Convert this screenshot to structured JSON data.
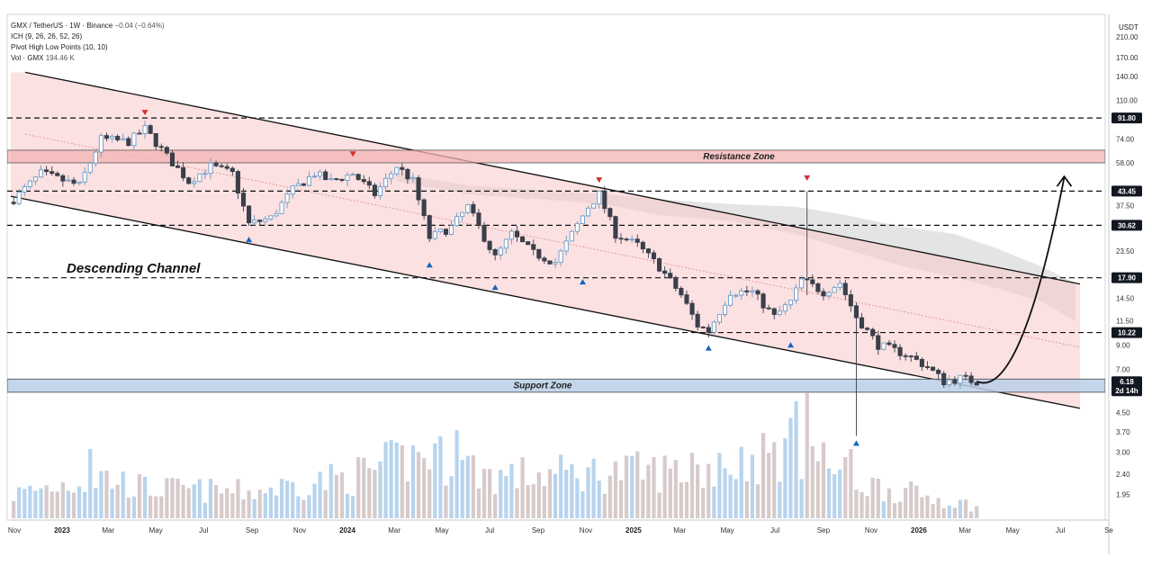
{
  "header": {
    "symbol_line": "GMX / TetherUS · 1W · Binance",
    "change": "−0.04 (−0.64%)",
    "indicator_1": "ICH (9, 26, 26, 52, 26)",
    "indicator_2": "Pivot High Low Points (10, 10)",
    "volume_label": "Vol · GMX",
    "volume_value": "194.46 K"
  },
  "colors": {
    "up_candle": "#6b9ac8",
    "down_candle": "#3a3f4a",
    "channel_fill": "#f7c9c9",
    "zone_fill": "#f4b3b3",
    "support_fill": "#b9cfe8",
    "pivot_high": "#d32f2f",
    "pivot_low": "#1565c0",
    "badge_dark": "#131722"
  },
  "chart_data": {
    "type": "candlestick",
    "title": "",
    "quote_currency": "USDT",
    "y_scale": "log",
    "ylim": [
      1.6,
      260
    ],
    "y_ticks": [
      "210.00",
      "170.00",
      "140.00",
      "110.00",
      "74.00",
      "58.00",
      "37.50",
      "23.50",
      "14.50",
      "11.50",
      "9.00",
      "7.00",
      "4.50",
      "3.70",
      "3.00",
      "2.40",
      "1.95"
    ],
    "y_tick_values": [
      210,
      170,
      140,
      110,
      74,
      58,
      37.5,
      23.5,
      14.5,
      11.5,
      9,
      7,
      4.5,
      3.7,
      3.0,
      2.4,
      1.95
    ],
    "x_ticks": [
      "Nov",
      "2023",
      "Mar",
      "May",
      "Jul",
      "Sep",
      "Nov",
      "2024",
      "Mar",
      "May",
      "Jul",
      "Sep",
      "Nov",
      "2025",
      "Mar",
      "May",
      "Jul",
      "Sep",
      "Nov",
      "2026",
      "Mar",
      "May",
      "Jul",
      "Se"
    ],
    "x_tick_bold": [
      false,
      true,
      false,
      false,
      false,
      false,
      false,
      true,
      false,
      false,
      false,
      false,
      false,
      true,
      false,
      false,
      false,
      false,
      false,
      true,
      false,
      false,
      false,
      false
    ],
    "x_tick_dates": [
      "2022-11-01",
      "2023-01-01",
      "2023-03-01",
      "2023-05-01",
      "2023-07-01",
      "2023-09-01",
      "2023-11-01",
      "2024-01-01",
      "2024-03-01",
      "2024-05-01",
      "2024-07-01",
      "2024-09-01",
      "2024-11-01",
      "2025-01-01",
      "2025-03-01",
      "2025-05-01",
      "2025-07-01",
      "2025-09-01",
      "2025-11-01",
      "2026-01-01",
      "2026-03-01",
      "2026-05-01",
      "2026-07-01",
      "2026-09-01"
    ],
    "price_anchors": [
      [
        "2022-10-31",
        40
      ],
      [
        "2022-12-05",
        52
      ],
      [
        "2023-01-23",
        46
      ],
      [
        "2023-02-20",
        74
      ],
      [
        "2023-03-27",
        72
      ],
      [
        "2023-04-17",
        82
      ],
      [
        "2023-05-15",
        62
      ],
      [
        "2023-06-12",
        48
      ],
      [
        "2023-07-10",
        56
      ],
      [
        "2023-08-07",
        52
      ],
      [
        "2023-08-28",
        31
      ],
      [
        "2023-09-25",
        33
      ],
      [
        "2023-10-23",
        44
      ],
      [
        "2023-11-20",
        52
      ],
      [
        "2023-12-11",
        48
      ],
      [
        "2024-01-08",
        52
      ],
      [
        "2024-02-05",
        42
      ],
      [
        "2024-03-04",
        56
      ],
      [
        "2024-03-25",
        48
      ],
      [
        "2024-04-15",
        27
      ],
      [
        "2024-05-13",
        30
      ],
      [
        "2024-06-03",
        37
      ],
      [
        "2024-07-08",
        22
      ],
      [
        "2024-07-29",
        28
      ],
      [
        "2024-08-26",
        23
      ],
      [
        "2024-09-23",
        21
      ],
      [
        "2024-10-14",
        28
      ],
      [
        "2024-11-04",
        37
      ],
      [
        "2024-11-18",
        42
      ],
      [
        "2024-12-09",
        28
      ],
      [
        "2025-01-06",
        25
      ],
      [
        "2025-02-03",
        20
      ],
      [
        "2025-03-03",
        15
      ],
      [
        "2025-03-24",
        11
      ],
      [
        "2025-04-07",
        10.4
      ],
      [
        "2025-05-05",
        15.5
      ],
      [
        "2025-06-02",
        15.5
      ],
      [
        "2025-06-30",
        12
      ],
      [
        "2025-07-21",
        14
      ],
      [
        "2025-08-04",
        17.5
      ],
      [
        "2025-09-01",
        15.5
      ],
      [
        "2025-09-22",
        17
      ],
      [
        "2025-10-13",
        12
      ],
      [
        "2025-11-10",
        9
      ],
      [
        "2025-12-15",
        8.2
      ],
      [
        "2026-01-12",
        7.2
      ],
      [
        "2026-02-02",
        6.2
      ],
      [
        "2026-02-23",
        6.4
      ],
      [
        "2026-03-16",
        6.18
      ]
    ],
    "volume_anchors": [
      [
        "2022-10-31",
        0.2
      ],
      [
        "2023-02-20",
        0.35
      ],
      [
        "2023-04-17",
        0.25
      ],
      [
        "2023-08-28",
        0.22
      ],
      [
        "2024-01-08",
        0.35
      ],
      [
        "2024-04-15",
        0.55
      ],
      [
        "2024-07-08",
        0.35
      ],
      [
        "2024-11-18",
        0.38
      ],
      [
        "2025-04-07",
        0.4
      ],
      [
        "2025-08-04",
        0.6
      ],
      [
        "2025-10-13",
        0.3
      ],
      [
        "2026-03-16",
        0.1
      ]
    ],
    "volume_spikes": [
      [
        "2023-02-06",
        0.55
      ],
      [
        "2024-04-29",
        0.65
      ],
      [
        "2024-05-20",
        0.7
      ],
      [
        "2025-03-17",
        0.52
      ],
      [
        "2025-04-21",
        0.52
      ],
      [
        "2025-07-28",
        0.93
      ],
      [
        "2025-08-11",
        1.0
      ],
      [
        "2025-10-06",
        0.55
      ]
    ],
    "wick_spikes": [
      [
        "2025-08-11",
        43.45,
        15.0
      ],
      [
        "2025-10-13",
        11.0,
        3.55
      ]
    ],
    "pivot_highs": [
      [
        "2023-04-17",
        91.8
      ],
      [
        "2024-01-08",
        60
      ],
      [
        "2024-11-18",
        46
      ],
      [
        "2025-08-11",
        47
      ]
    ],
    "pivot_lows": [
      [
        "2023-08-28",
        28.5
      ],
      [
        "2024-04-15",
        22
      ],
      [
        "2024-07-08",
        17.5
      ],
      [
        "2024-10-28",
        18.5
      ],
      [
        "2025-04-07",
        9.4
      ],
      [
        "2025-07-21",
        9.7
      ],
      [
        "2025-10-13",
        3.55
      ]
    ],
    "horizontal_levels": [
      {
        "price": 91.8,
        "label": "91.80"
      },
      {
        "price": 43.45,
        "label": "43.45"
      },
      {
        "price": 30.62,
        "label": "30.62"
      },
      {
        "price": 17.9,
        "label": "17.90"
      },
      {
        "price": 10.22,
        "label": "10.22"
      }
    ],
    "current_price": {
      "price": 6.18,
      "label": "6.18",
      "countdown": "2d 14h"
    },
    "resistance_zone": {
      "label": "Resistance Zone",
      "low": 58,
      "high": 66
    },
    "support_zone": {
      "label": "Support Zone",
      "low": 5.55,
      "high": 6.35
    },
    "channel": {
      "label": "Descending Channel",
      "upper": [
        [
          "2022-11-21",
          145
        ],
        [
          "2026-09-14",
          15.5
        ]
      ],
      "lower": [
        [
          "2022-11-07",
          40.5
        ],
        [
          "2026-09-14",
          4.35
        ]
      ],
      "mid": [
        [
          "2022-11-21",
          77
        ],
        [
          "2026-09-07",
          8.2
        ]
      ]
    },
    "projection_arrow": [
      [
        "2026-03-16",
        6.2
      ],
      [
        "2026-05-11",
        6.6
      ],
      [
        "2026-07-06",
        50
      ]
    ],
    "ichimoku_cloud": [
      [
        "2024-03-04",
        52,
        48
      ],
      [
        "2024-06-03",
        46,
        42
      ],
      [
        "2024-09-02",
        44,
        40
      ],
      [
        "2024-11-25",
        42,
        38
      ],
      [
        "2025-02-03",
        40,
        34
      ],
      [
        "2025-05-05",
        38,
        32
      ],
      [
        "2025-07-28",
        37,
        28
      ],
      [
        "2025-09-29",
        34,
        24
      ],
      [
        "2025-12-15",
        30,
        20
      ],
      [
        "2026-02-16",
        28,
        18
      ],
      [
        "2026-04-13",
        24,
        16
      ],
      [
        "2026-06-08",
        20,
        14
      ],
      [
        "2026-07-20",
        17,
        11.5
      ]
    ]
  }
}
